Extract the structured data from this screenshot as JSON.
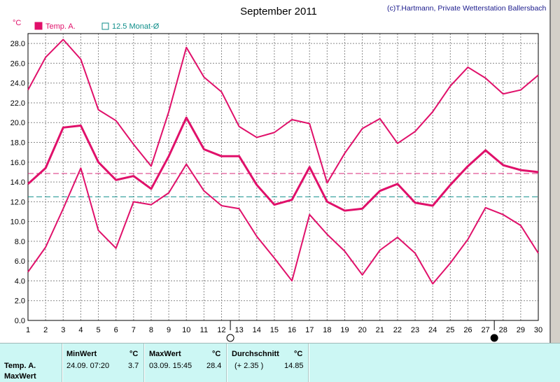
{
  "chart_data": {
    "type": "line",
    "title": "September 2011",
    "credit": "(c)T.Hartmann, Private Wetterstation Ballersbach",
    "ylabel": "°C",
    "x": [
      1,
      2,
      3,
      4,
      5,
      6,
      7,
      8,
      9,
      10,
      11,
      12,
      13,
      14,
      15,
      16,
      17,
      18,
      19,
      20,
      21,
      22,
      23,
      24,
      25,
      26,
      27,
      28,
      29,
      30
    ],
    "ylim": [
      0,
      29
    ],
    "yticks": [
      "0.0",
      "2.0",
      "4.0",
      "6.0",
      "8.0",
      "10.0",
      "12.0",
      "14.0",
      "16.0",
      "18.0",
      "20.0",
      "22.0",
      "24.0",
      "26.0",
      "28.0"
    ],
    "grid": true,
    "legend": [
      "Temp. A.",
      "12.5 Monat-Ø"
    ],
    "series": [
      {
        "name": "Temp. A.",
        "role": "max",
        "color": "#e0106a",
        "values": [
          23.3,
          26.6,
          28.4,
          26.4,
          21.3,
          20.2,
          17.8,
          15.6,
          21.1,
          27.6,
          24.6,
          23.1,
          19.6,
          18.5,
          19.0,
          20.3,
          19.9,
          13.9,
          16.9,
          19.4,
          20.4,
          17.9,
          19.1,
          21.1,
          23.7,
          25.6,
          24.5,
          22.9,
          23.3,
          24.8
        ]
      },
      {
        "name": "Temp. A.",
        "role": "mean",
        "color": "#e0106a",
        "values": [
          13.8,
          15.4,
          19.5,
          19.7,
          16.0,
          14.2,
          14.6,
          13.3,
          16.6,
          20.5,
          17.3,
          16.6,
          16.6,
          13.7,
          11.7,
          12.2,
          15.5,
          12.0,
          11.1,
          11.3,
          13.1,
          13.8,
          11.9,
          11.6,
          13.7,
          15.6,
          17.2,
          15.7,
          15.2,
          15.0
        ]
      },
      {
        "name": "Temp. A.",
        "role": "min",
        "color": "#e0106a",
        "values": [
          4.9,
          7.4,
          11.3,
          15.4,
          9.1,
          7.3,
          12.0,
          11.7,
          12.9,
          15.8,
          13.1,
          11.6,
          11.3,
          8.5,
          6.3,
          4.0,
          10.7,
          8.7,
          7.0,
          4.6,
          7.1,
          8.4,
          6.8,
          3.7,
          5.8,
          8.2,
          11.4,
          10.7,
          9.6,
          6.8
        ]
      }
    ],
    "reference_lines": [
      {
        "name": "month-mean",
        "value": 14.85,
        "color": "#d8287a",
        "style": "dashed"
      },
      {
        "name": "12.5 Monat-Ø",
        "value": 12.5,
        "color": "#0f8e8a",
        "style": "dashed"
      }
    ],
    "moon_markers": [
      {
        "day": 12.5,
        "phase": "full"
      },
      {
        "day": 27.5,
        "phase": "new"
      }
    ]
  },
  "info_panel": {
    "row1_label": "Temp. A.",
    "row2_label": "MaxWert",
    "min": {
      "header": "MinWert",
      "unit": "°C",
      "datetime": "24.09.  07:20",
      "value": "3.7"
    },
    "max": {
      "header": "MaxWert",
      "unit": "°C",
      "datetime": "03.09.  15:45",
      "value": "28.4"
    },
    "avg": {
      "header": "Durchschnitt",
      "unit": "°C",
      "delta": "(+ 2.35 )",
      "value": "14.85"
    }
  }
}
